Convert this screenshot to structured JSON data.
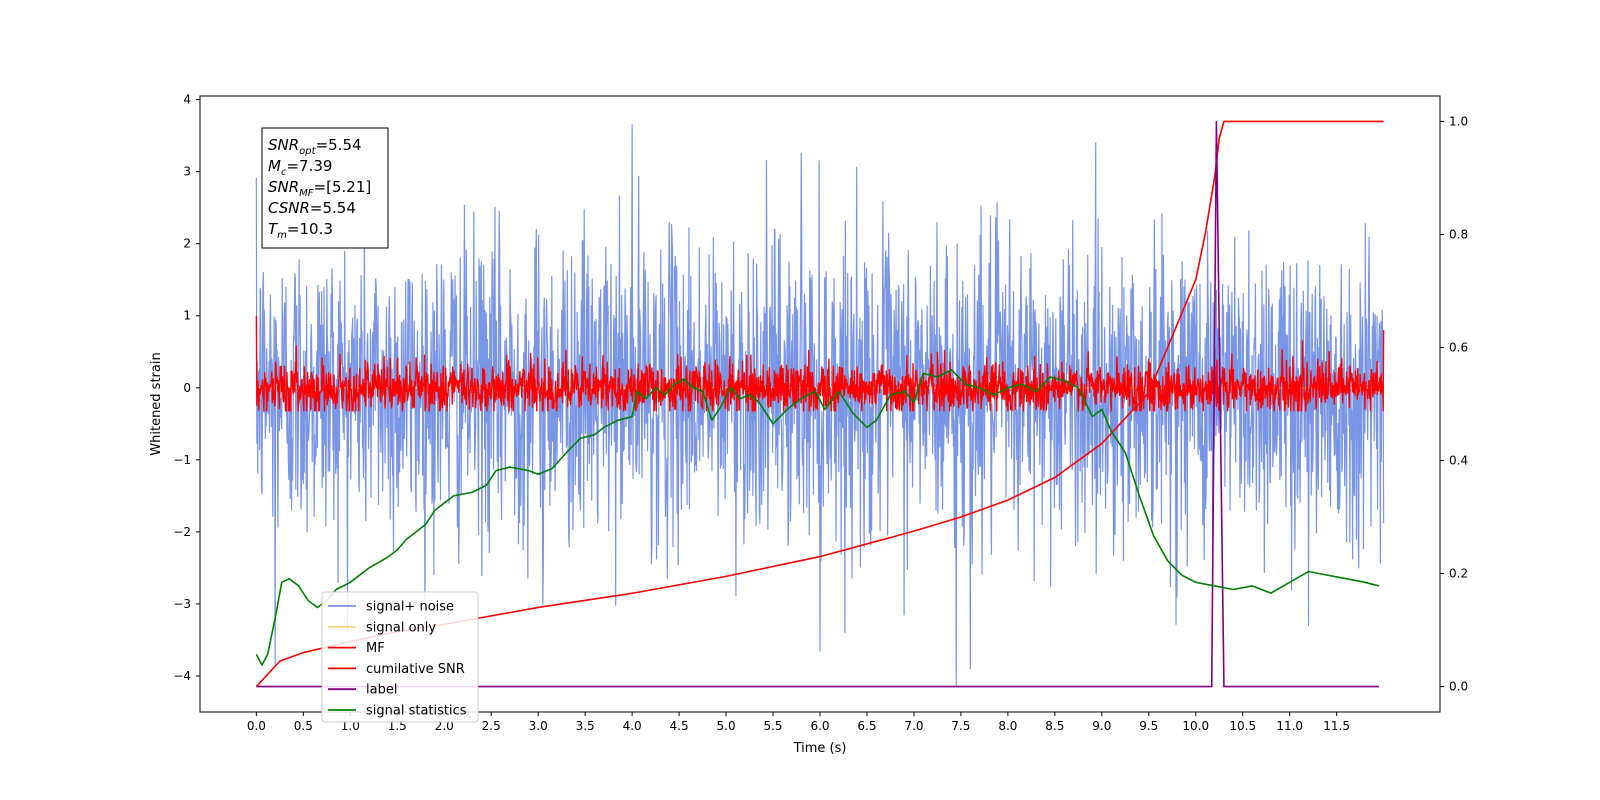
{
  "chart_data": {
    "type": "line",
    "xlabel": "Time (s)",
    "ylabel": "Whitened strain",
    "xlim": [
      -0.6,
      12.6
    ],
    "ylim": [
      -4.5,
      4.05
    ],
    "y2lim": [
      -0.045,
      1.045
    ],
    "xticks": [
      0.0,
      0.5,
      1.0,
      1.5,
      2.0,
      2.5,
      3.0,
      3.5,
      4.0,
      4.5,
      5.0,
      5.5,
      6.0,
      6.5,
      7.0,
      7.5,
      8.0,
      8.5,
      9.0,
      9.5,
      10.0,
      10.5,
      11.0,
      11.5
    ],
    "xtick_labels": [
      "0.0",
      "0.5",
      "1.0",
      "1.5",
      "2.0",
      "2.5",
      "3.0",
      "3.5",
      "4.0",
      "4.5",
      "5.0",
      "5.5",
      "6.0",
      "6.5",
      "7.0",
      "7.5",
      "8.0",
      "8.5",
      "9.0",
      "9.5",
      "10.0",
      "10.5",
      "11.0",
      "11.5"
    ],
    "yticks": [
      -4,
      -3,
      -2,
      -1,
      0,
      1,
      2,
      3,
      4
    ],
    "ytick_labels": [
      "−4",
      "−3",
      "−2",
      "−1",
      "0",
      "1",
      "2",
      "3",
      "4"
    ],
    "y2ticks": [
      0.0,
      0.2,
      0.4,
      0.6,
      0.8,
      1.0
    ],
    "y2tick_labels": [
      "0.0",
      "0.2",
      "0.4",
      "0.6",
      "0.8",
      "1.0"
    ],
    "grid": false,
    "legend_placement": "lower-left",
    "annotation": [
      {
        "base": "SNR",
        "sub": "opt",
        "value": "=5.54"
      },
      {
        "base": "M",
        "sub": "c",
        "value": "=7.39"
      },
      {
        "base": "SNR",
        "sub": "MF",
        "value": "=[5.21]"
      },
      {
        "base": "CSNR",
        "sub": "",
        "value": "=5.54"
      },
      {
        "base": "T",
        "sub": "m",
        "value": "=10.3"
      }
    ],
    "series": [
      {
        "name": "signal+ noise",
        "axis": "left",
        "color": "#6a89e3",
        "opacity": 0.9,
        "kind": "noise",
        "x_range": [
          0.0,
          12.0
        ],
        "sigma": 1.05,
        "spikes": [
          [
            4.0,
            3.65
          ],
          [
            7.45,
            -4.15
          ],
          [
            0.2,
            -3.85
          ],
          [
            6.0,
            -3.65
          ],
          [
            11.2,
            -3.3
          ],
          [
            3.05,
            -3.0
          ],
          [
            7.6,
            -3.9
          ],
          [
            5.8,
            3.25
          ]
        ]
      },
      {
        "name": "signal only",
        "axis": "left",
        "color": "#ffd27a",
        "kind": "flat",
        "x": [
          0.0,
          12.0
        ],
        "y": [
          0.0,
          0.0
        ]
      },
      {
        "name": "MF",
        "axis": "left",
        "color": "#ff0000",
        "kind": "mf",
        "x_range": [
          0.0,
          12.0
        ],
        "sigma": 0.18,
        "endpoints": [
          [
            0.0,
            1.0
          ],
          [
            12.0,
            0.8
          ]
        ]
      },
      {
        "name": "cumilative SNR",
        "axis": "right",
        "color": "#ff0000",
        "x": [
          0.0,
          0.25,
          0.5,
          1.0,
          1.5,
          2.0,
          3.0,
          4.0,
          5.0,
          6.0,
          7.0,
          7.5,
          8.0,
          8.5,
          9.0,
          9.5,
          10.0,
          10.1,
          10.2,
          10.25,
          10.3,
          12.0
        ],
        "y": [
          0.0,
          0.045,
          0.06,
          0.08,
          0.097,
          0.11,
          0.14,
          0.165,
          0.195,
          0.23,
          0.275,
          0.3,
          0.33,
          0.37,
          0.43,
          0.52,
          0.72,
          0.8,
          0.9,
          0.97,
          1.0,
          1.0
        ]
      },
      {
        "name": "label",
        "axis": "right",
        "color": "#800080",
        "x": [
          0.0,
          10.17,
          10.22,
          10.3,
          10.32,
          11.95
        ],
        "y": [
          0.0,
          0.0,
          1.0,
          0.0,
          0.0,
          0.0
        ]
      },
      {
        "name": "signal statistics",
        "axis": "left",
        "color": "#008000",
        "x": [
          0.0,
          0.06,
          0.12,
          0.2,
          0.27,
          0.35,
          0.45,
          0.55,
          0.65,
          0.75,
          0.85,
          1.0,
          1.2,
          1.4,
          1.5,
          1.6,
          1.8,
          1.9,
          2.0,
          2.1,
          2.3,
          2.45,
          2.55,
          2.7,
          2.9,
          3.0,
          3.15,
          3.3,
          3.45,
          3.6,
          3.7,
          3.85,
          4.0,
          4.05,
          4.15,
          4.25,
          4.35,
          4.45,
          4.55,
          4.65,
          4.75,
          4.85,
          4.95,
          5.05,
          5.15,
          5.25,
          5.35,
          5.5,
          5.65,
          5.8,
          5.95,
          6.05,
          6.2,
          6.35,
          6.5,
          6.6,
          6.75,
          6.9,
          7.0,
          7.1,
          7.25,
          7.4,
          7.55,
          7.7,
          7.85,
          8.0,
          8.15,
          8.3,
          8.45,
          8.6,
          8.75,
          8.9,
          9.0,
          9.1,
          9.25,
          9.4,
          9.55,
          9.7,
          9.85,
          10.0,
          10.2,
          10.4,
          10.6,
          10.8,
          11.0,
          11.2,
          11.4,
          11.6,
          11.8,
          11.95
        ],
        "y": [
          -3.7,
          -3.85,
          -3.7,
          -3.2,
          -2.7,
          -2.65,
          -2.75,
          -2.95,
          -3.05,
          -2.95,
          -2.8,
          -2.7,
          -2.5,
          -2.35,
          -2.25,
          -2.1,
          -1.9,
          -1.7,
          -1.6,
          -1.5,
          -1.45,
          -1.35,
          -1.15,
          -1.1,
          -1.15,
          -1.2,
          -1.12,
          -0.9,
          -0.7,
          -0.65,
          -0.55,
          -0.45,
          -0.4,
          -0.05,
          -0.15,
          0.0,
          -0.1,
          0.05,
          0.12,
          0.0,
          -0.05,
          -0.45,
          -0.25,
          0.0,
          -0.15,
          -0.1,
          -0.2,
          -0.5,
          -0.3,
          -0.15,
          -0.05,
          -0.3,
          -0.05,
          -0.35,
          -0.55,
          -0.45,
          -0.1,
          -0.05,
          -0.2,
          0.2,
          0.15,
          0.25,
          0.05,
          0.0,
          -0.1,
          0.0,
          0.05,
          -0.05,
          0.15,
          0.1,
          0.0,
          -0.4,
          -0.3,
          -0.6,
          -0.9,
          -1.5,
          -2.05,
          -2.4,
          -2.6,
          -2.7,
          -2.75,
          -2.8,
          -2.75,
          -2.85,
          -2.7,
          -2.55,
          -2.6,
          -2.65,
          -2.7,
          -2.75
        ]
      }
    ]
  }
}
